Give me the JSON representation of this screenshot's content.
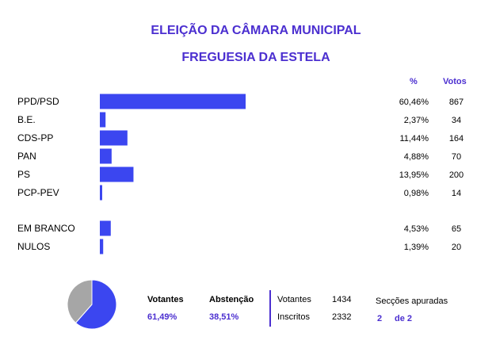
{
  "header": {
    "title": "ELEIÇÃO DA CÂMARA MUNICIPAL",
    "subtitle": "FREGUESIA DA ESTELA",
    "col_pct": "%",
    "col_votes": "Votos"
  },
  "chart_data": {
    "type": "bar",
    "orientation": "horizontal",
    "bar_color": "#3b46f0",
    "rows": [
      {
        "label": "PPD/PSD",
        "pct": "60,46%",
        "value": 60.46,
        "votes": "867"
      },
      {
        "label": "B.E.",
        "pct": "2,37%",
        "value": 2.37,
        "votes": "34"
      },
      {
        "label": "CDS-PP",
        "pct": "11,44%",
        "value": 11.44,
        "votes": "164"
      },
      {
        "label": "PAN",
        "pct": "4,88%",
        "value": 4.88,
        "votes": "70"
      },
      {
        "label": "PS",
        "pct": "13,95%",
        "value": 13.95,
        "votes": "200"
      },
      {
        "label": "PCP-PEV",
        "pct": "0,98%",
        "value": 0.98,
        "votes": "14"
      }
    ],
    "extra_rows": [
      {
        "label": "EM BRANCO",
        "pct": "4,53%",
        "value": 4.53,
        "votes": "65"
      },
      {
        "label": "NULOS",
        "pct": "1,39%",
        "value": 1.39,
        "votes": "20"
      }
    ],
    "pie": {
      "type": "pie",
      "slices": [
        {
          "name": "Votantes",
          "value": 61.49,
          "color": "#3b46f0"
        },
        {
          "name": "Abstenção",
          "value": 38.51,
          "color": "#a6a6a6"
        }
      ]
    }
  },
  "stats": {
    "votantes_label": "Votantes",
    "votantes_pct": "61,49%",
    "abstencao_label": "Abstenção",
    "abstencao_pct": "38,51%",
    "votantes_count_label": "Votantes",
    "votantes_count": "1434",
    "inscritos_label": "Inscritos",
    "inscritos_count": "2332",
    "seccoes_label": "Secções apuradas",
    "seccoes_done": "2",
    "seccoes_total": "de 2"
  }
}
